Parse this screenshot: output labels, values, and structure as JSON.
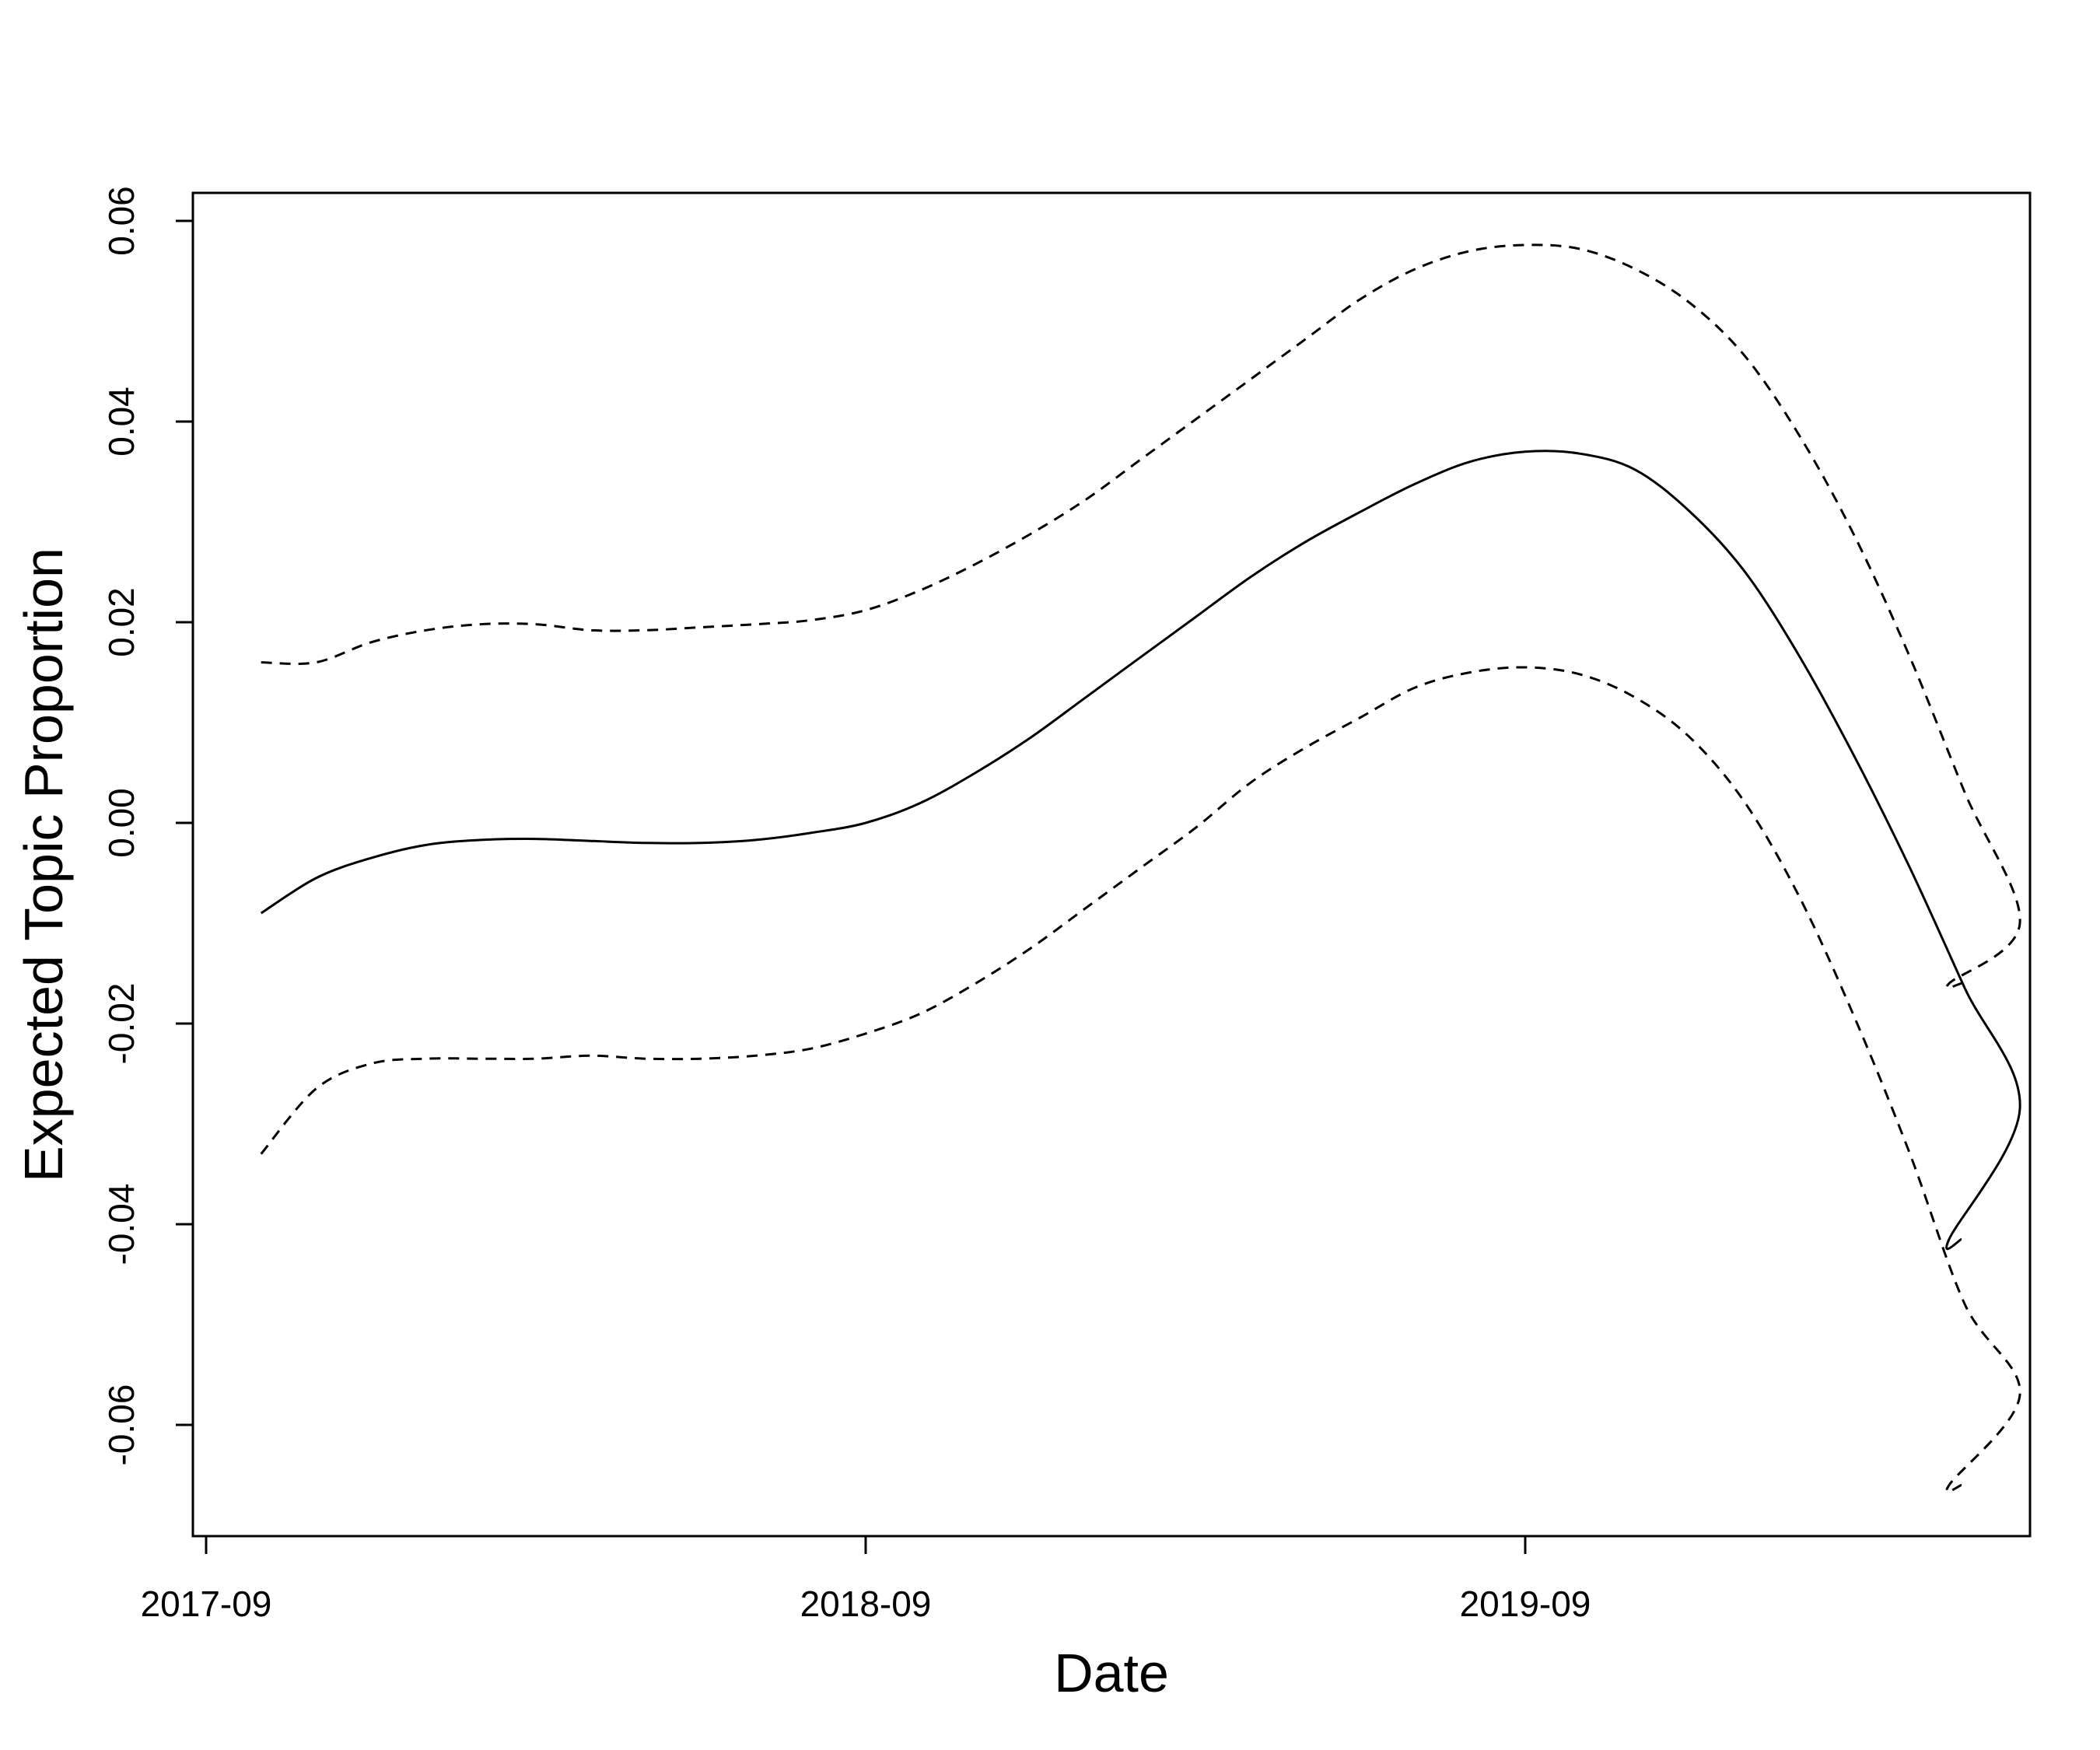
{
  "chart_data": {
    "type": "line",
    "title": "",
    "xlabel": "Date",
    "ylabel": "Expected Topic Proportion",
    "x_ticks": [
      "2017-09",
      "2018-09",
      "2019-09"
    ],
    "y_ticks": [
      "-0.06",
      "-0.04",
      "-0.02",
      "0.00",
      "0.02",
      "0.04",
      "0.06"
    ],
    "xlim": [
      "2017-09",
      "2020-12"
    ],
    "ylim": [
      -0.07,
      0.063
    ],
    "grid": false,
    "legend": "none",
    "x": [
      "2017-10",
      "2017-11",
      "2017-12",
      "2018-01",
      "2018-02",
      "2018-03",
      "2018-04",
      "2018-05",
      "2018-06",
      "2018-07",
      "2018-08",
      "2018-09",
      "2018-10",
      "2018-11",
      "2018-12",
      "2019-01",
      "2019-02",
      "2019-03",
      "2019-04",
      "2019-05",
      "2019-06",
      "2019-07",
      "2019-08",
      "2019-09",
      "2019-10",
      "2019-11",
      "2019-12",
      "2020-01",
      "2020-02",
      "2020-03",
      "2020-04",
      "2020-05",
      "2020-06",
      "2020-07",
      "2020-08"
    ],
    "series": [
      {
        "style": "solid",
        "values": [
          -0.009,
          -0.0055,
          -0.0035,
          -0.0022,
          -0.0017,
          -0.0016,
          -0.0018,
          -0.002,
          -0.002,
          -0.0017,
          -0.001,
          0.0,
          0.002,
          0.005,
          0.0085,
          0.0125,
          0.0165,
          0.0205,
          0.0245,
          0.028,
          0.031,
          0.0338,
          0.036,
          0.037,
          0.0368,
          0.0352,
          0.031,
          0.025,
          0.0165,
          0.0065,
          -0.0045,
          -0.0165,
          -0.0285,
          -0.0415,
          -0.0415
        ]
      },
      {
        "style": "dashed",
        "values": [
          0.016,
          0.016,
          0.018,
          0.0192,
          0.0198,
          0.0198,
          0.0192,
          0.0192,
          0.0195,
          0.0198,
          0.0202,
          0.0212,
          0.0232,
          0.0258,
          0.0288,
          0.0322,
          0.0362,
          0.0402,
          0.0442,
          0.0482,
          0.0522,
          0.0552,
          0.057,
          0.0576,
          0.0572,
          0.0552,
          0.0518,
          0.0465,
          0.0385,
          0.0285,
          0.0165,
          0.003,
          -0.01,
          -0.016,
          -0.016
        ]
      },
      {
        "style": "dashed",
        "values": [
          -0.033,
          -0.0265,
          -0.024,
          -0.0235,
          -0.0235,
          -0.0235,
          -0.0232,
          -0.0235,
          -0.0235,
          -0.0232,
          -0.0225,
          -0.021,
          -0.019,
          -0.016,
          -0.0125,
          -0.0085,
          -0.0045,
          -0.0005,
          0.004,
          0.0075,
          0.0105,
          0.0135,
          0.015,
          0.0155,
          0.0148,
          0.0125,
          0.0085,
          0.002,
          -0.0075,
          -0.0195,
          -0.033,
          -0.048,
          -0.057,
          -0.066,
          -0.066
        ]
      }
    ]
  }
}
